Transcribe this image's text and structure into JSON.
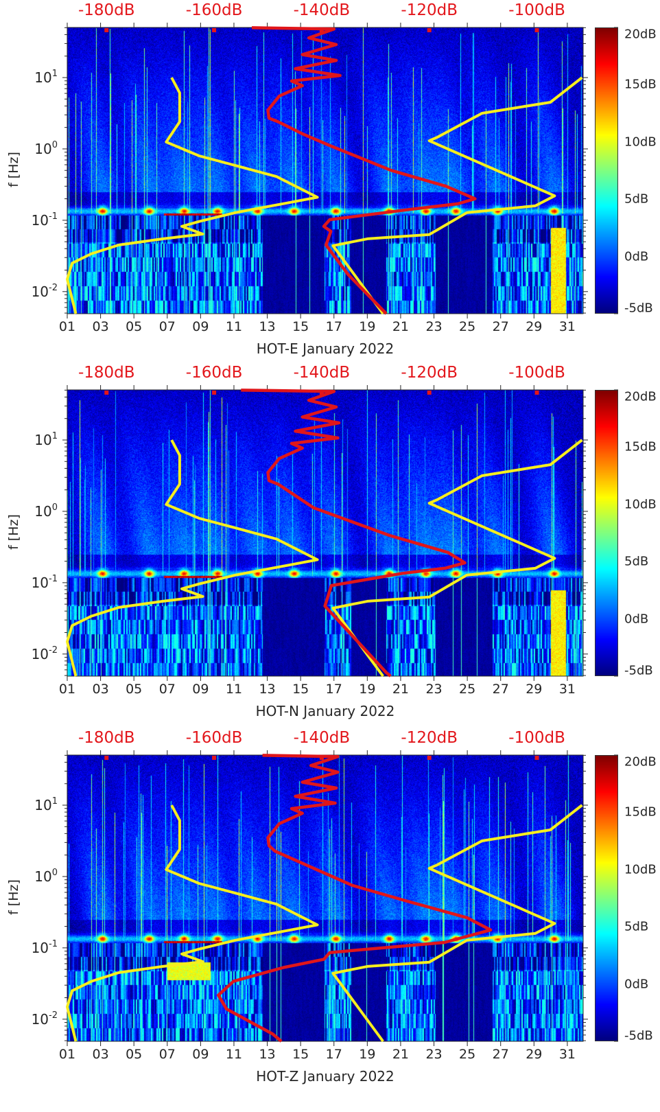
{
  "chart_data": [
    {
      "type": "heatmap",
      "title": "HOT-E January 2022",
      "ylabel": "f [Hz]",
      "yscale": "log",
      "ylim": [
        0.0049,
        50.4
      ],
      "xlim_days": [
        1,
        31.95
      ],
      "xticks": [
        "01",
        "03",
        "05",
        "07",
        "09",
        "11",
        "13",
        "15",
        "17",
        "19",
        "21",
        "23",
        "25",
        "27",
        "29",
        "31"
      ],
      "yticks": [
        {
          "base": "10",
          "exp": "1",
          "value": 10
        },
        {
          "base": "10",
          "exp": "0",
          "value": 1
        },
        {
          "base": "10",
          "exp": "-1",
          "value": 0.1
        },
        {
          "base": "10",
          "exp": "-2",
          "value": 0.01
        }
      ],
      "top_axis": {
        "labels": [
          "-180dB",
          "-160dB",
          "-140dB",
          "-120dB",
          "-100dB"
        ],
        "values": [
          -180,
          -160,
          -140,
          -120,
          -100
        ],
        "xlim": [
          -187.3,
          -91.4
        ]
      },
      "colorbar": {
        "range": [
          -5,
          20
        ],
        "labels": [
          "20dB",
          "15dB",
          "10dB",
          "5dB",
          "0dB",
          "-5dB"
        ],
        "values": [
          20,
          15,
          10,
          5,
          0,
          -5
        ]
      },
      "lines": [
        {
          "color": "#f6ee1e",
          "points": [
            [
              -167.9,
              10
            ],
            [
              -166.4,
              6.1
            ],
            [
              -166.4,
              2.4
            ],
            [
              -168.9,
              1.25
            ],
            [
              -162.8,
              0.8
            ],
            [
              -155.1,
              0.56
            ],
            [
              -148.4,
              0.41
            ],
            [
              -140.8,
              0.21
            ],
            [
              -145.8,
              0.178
            ],
            [
              -156.0,
              0.128
            ],
            [
              -162.8,
              0.096
            ],
            [
              -166.0,
              0.082
            ],
            [
              -162.1,
              0.064
            ],
            [
              -169.5,
              0.055
            ],
            [
              -177.7,
              0.045
            ],
            [
              -182.8,
              0.034
            ],
            [
              -186.4,
              0.025
            ],
            [
              -187.3,
              0.0149
            ],
            [
              -185.7,
              0.0049
            ]
          ]
        },
        {
          "color": "#f6ee1e",
          "points": [
            [
              -91.6,
              10
            ],
            [
              -97.5,
              4.5
            ],
            [
              -110.2,
              3.16
            ],
            [
              -118.5,
              1.46
            ],
            [
              -120.0,
              1.3
            ],
            [
              -96.7,
              0.22
            ],
            [
              -100.3,
              0.159
            ],
            [
              -113.0,
              0.128
            ],
            [
              -120.0,
              0.063
            ],
            [
              -131.5,
              0.055
            ],
            [
              -137.9,
              0.044
            ],
            [
              -128.6,
              0.0049
            ]
          ]
        },
        {
          "color": "#e0161a",
          "points": [
            [
              -153.0,
              50
            ],
            [
              -137.7,
              48
            ],
            [
              -142.4,
              36
            ],
            [
              -137.3,
              29
            ],
            [
              -143.6,
              21
            ],
            [
              -137.3,
              17.4
            ],
            [
              -144.9,
              13.3
            ],
            [
              -136.6,
              10.7
            ],
            [
              -145.6,
              8.95
            ],
            [
              -143.6,
              7.7
            ],
            [
              -147.9,
              5.5
            ],
            [
              -150.0,
              3.5
            ],
            [
              -149.8,
              2.7
            ],
            [
              -148.1,
              2.4
            ],
            [
              -143.6,
              1.63
            ],
            [
              -138.2,
              1.09
            ],
            [
              -127.1,
              0.5
            ],
            [
              -116.9,
              0.3
            ],
            [
              -111.5,
              0.2
            ],
            [
              -114.7,
              0.17
            ],
            [
              -123.2,
              0.143
            ],
            [
              -138.5,
              0.102
            ],
            [
              -139.6,
              0.082
            ],
            [
              -138.3,
              0.07
            ],
            [
              -139.2,
              0.045
            ],
            [
              -135.1,
              0.0174
            ],
            [
              -128.0,
              0.0049
            ]
          ]
        }
      ]
    },
    {
      "type": "heatmap",
      "title": "HOT-N January 2022",
      "ylabel": "f [Hz]",
      "yscale": "log",
      "ylim": [
        0.0049,
        50.4
      ],
      "xlim_days": [
        1,
        31.95
      ],
      "xticks": [
        "01",
        "03",
        "05",
        "07",
        "09",
        "11",
        "13",
        "15",
        "17",
        "19",
        "21",
        "23",
        "25",
        "27",
        "29",
        "31"
      ],
      "yticks": [
        {
          "base": "10",
          "exp": "1",
          "value": 10
        },
        {
          "base": "10",
          "exp": "0",
          "value": 1
        },
        {
          "base": "10",
          "exp": "-1",
          "value": 0.1
        },
        {
          "base": "10",
          "exp": "-2",
          "value": 0.01
        }
      ],
      "top_axis": {
        "labels": [
          "-180dB",
          "-160dB",
          "-140dB",
          "-120dB",
          "-100dB"
        ],
        "values": [
          -180,
          -160,
          -140,
          -120,
          -100
        ],
        "xlim": [
          -187.3,
          -91.4
        ]
      },
      "colorbar": {
        "range": [
          -5,
          20
        ],
        "labels": [
          "20dB",
          "15dB",
          "10dB",
          "5dB",
          "0dB",
          "-5dB"
        ],
        "values": [
          20,
          15,
          10,
          5,
          0,
          -5
        ]
      },
      "lines": [
        {
          "color": "#f6ee1e",
          "points": [
            [
              -167.9,
              10
            ],
            [
              -166.4,
              6.1
            ],
            [
              -166.4,
              2.4
            ],
            [
              -168.9,
              1.25
            ],
            [
              -162.8,
              0.8
            ],
            [
              -155.1,
              0.56
            ],
            [
              -148.4,
              0.41
            ],
            [
              -140.8,
              0.21
            ],
            [
              -145.8,
              0.178
            ],
            [
              -156.0,
              0.128
            ],
            [
              -162.8,
              0.096
            ],
            [
              -166.0,
              0.082
            ],
            [
              -162.1,
              0.064
            ],
            [
              -169.5,
              0.055
            ],
            [
              -177.7,
              0.045
            ],
            [
              -182.8,
              0.034
            ],
            [
              -186.4,
              0.025
            ],
            [
              -187.3,
              0.0149
            ],
            [
              -185.7,
              0.0049
            ]
          ]
        },
        {
          "color": "#f6ee1e",
          "points": [
            [
              -91.6,
              10
            ],
            [
              -97.5,
              4.5
            ],
            [
              -110.2,
              3.16
            ],
            [
              -118.5,
              1.46
            ],
            [
              -120.0,
              1.3
            ],
            [
              -96.7,
              0.22
            ],
            [
              -100.3,
              0.159
            ],
            [
              -113.0,
              0.128
            ],
            [
              -120.0,
              0.063
            ],
            [
              -131.5,
              0.055
            ],
            [
              -137.9,
              0.044
            ],
            [
              -128.6,
              0.0049
            ]
          ]
        },
        {
          "color": "#e0161a",
          "points": [
            [
              -155.0,
              50
            ],
            [
              -137.7,
              48
            ],
            [
              -142.4,
              36
            ],
            [
              -137.3,
              29
            ],
            [
              -143.6,
              21
            ],
            [
              -136.8,
              17.4
            ],
            [
              -144.9,
              13.3
            ],
            [
              -137.0,
              10.7
            ],
            [
              -145.6,
              8.95
            ],
            [
              -143.6,
              7.7
            ],
            [
              -147.9,
              5.5
            ],
            [
              -150.0,
              3.5
            ],
            [
              -149.8,
              2.7
            ],
            [
              -148.1,
              2.4
            ],
            [
              -141.5,
              1.12
            ],
            [
              -127.4,
              0.46
            ],
            [
              -116.5,
              0.265
            ],
            [
              -113.4,
              0.19
            ],
            [
              -117.0,
              0.16
            ],
            [
              -125.0,
              0.135
            ],
            [
              -138.2,
              0.091
            ],
            [
              -139.4,
              0.047
            ],
            [
              -128.0,
              0.0055
            ],
            [
              -127.2,
              0.0049
            ]
          ]
        }
      ]
    },
    {
      "type": "heatmap",
      "title": "HOT-Z January 2022",
      "ylabel": "f [Hz]",
      "yscale": "log",
      "ylim": [
        0.0049,
        50.4
      ],
      "xlim_days": [
        1,
        31.95
      ],
      "xticks": [
        "01",
        "03",
        "05",
        "07",
        "09",
        "11",
        "13",
        "15",
        "17",
        "19",
        "21",
        "23",
        "25",
        "27",
        "29",
        "31"
      ],
      "yticks": [
        {
          "base": "10",
          "exp": "1",
          "value": 10
        },
        {
          "base": "10",
          "exp": "0",
          "value": 1
        },
        {
          "base": "10",
          "exp": "-1",
          "value": 0.1
        },
        {
          "base": "10",
          "exp": "-2",
          "value": 0.01
        }
      ],
      "top_axis": {
        "labels": [
          "-180dB",
          "-160dB",
          "-140dB",
          "-120dB",
          "-100dB"
        ],
        "values": [
          -180,
          -160,
          -140,
          -120,
          -100
        ],
        "xlim": [
          -187.3,
          -91.4
        ]
      },
      "colorbar": {
        "range": [
          -5,
          20
        ],
        "labels": [
          "20dB",
          "15dB",
          "10dB",
          "5dB",
          "0dB",
          "-5dB"
        ],
        "values": [
          20,
          15,
          10,
          5,
          0,
          -5
        ]
      },
      "lines": [
        {
          "color": "#f6ee1e",
          "points": [
            [
              -167.9,
              10
            ],
            [
              -166.4,
              6.1
            ],
            [
              -166.4,
              2.4
            ],
            [
              -168.9,
              1.25
            ],
            [
              -162.8,
              0.8
            ],
            [
              -155.1,
              0.56
            ],
            [
              -148.4,
              0.41
            ],
            [
              -140.8,
              0.21
            ],
            [
              -145.8,
              0.178
            ],
            [
              -156.0,
              0.128
            ],
            [
              -162.8,
              0.096
            ],
            [
              -166.0,
              0.082
            ],
            [
              -162.1,
              0.064
            ],
            [
              -169.5,
              0.055
            ],
            [
              -177.7,
              0.045
            ],
            [
              -182.8,
              0.034
            ],
            [
              -186.4,
              0.025
            ],
            [
              -187.3,
              0.0149
            ],
            [
              -185.7,
              0.0049
            ]
          ]
        },
        {
          "color": "#f6ee1e",
          "points": [
            [
              -91.6,
              10
            ],
            [
              -97.5,
              4.5
            ],
            [
              -110.2,
              3.16
            ],
            [
              -118.5,
              1.46
            ],
            [
              -120.0,
              1.3
            ],
            [
              -96.7,
              0.22
            ],
            [
              -100.3,
              0.159
            ],
            [
              -113.0,
              0.128
            ],
            [
              -120.0,
              0.063
            ],
            [
              -131.5,
              0.055
            ],
            [
              -137.9,
              0.044
            ],
            [
              -128.6,
              0.0049
            ]
          ]
        },
        {
          "color": "#e0161a",
          "points": [
            [
              -151.0,
              50
            ],
            [
              -137.0,
              48
            ],
            [
              -142.0,
              36
            ],
            [
              -137.0,
              29
            ],
            [
              -143.6,
              21
            ],
            [
              -137.3,
              17.4
            ],
            [
              -144.9,
              13.3
            ],
            [
              -137.5,
              10.7
            ],
            [
              -145.6,
              8.95
            ],
            [
              -143.6,
              7.7
            ],
            [
              -147.9,
              5.5
            ],
            [
              -150.0,
              3.5
            ],
            [
              -149.8,
              2.7
            ],
            [
              -148.7,
              2.27
            ],
            [
              -134.3,
              0.75
            ],
            [
              -124.5,
              0.46
            ],
            [
              -113.0,
              0.265
            ],
            [
              -108.6,
              0.178
            ],
            [
              -117.2,
              0.119
            ],
            [
              -138.5,
              0.086
            ],
            [
              -139.6,
              0.069
            ],
            [
              -147.1,
              0.053
            ],
            [
              -156.4,
              0.034
            ],
            [
              -159.2,
              0.0217
            ],
            [
              -157.7,
              0.0139
            ],
            [
              -149.1,
              0.0062
            ],
            [
              -147.5,
              0.0049
            ]
          ]
        }
      ]
    }
  ]
}
